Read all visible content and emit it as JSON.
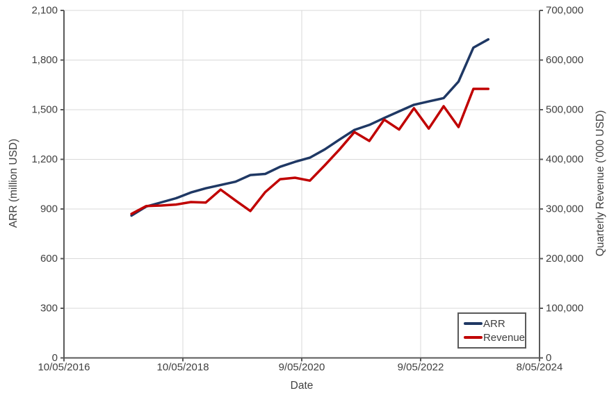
{
  "chart_data": {
    "type": "line",
    "title": "",
    "xlabel": "Date",
    "ylabel_left": "ARR (million USD)",
    "ylabel_right": "Quarterly Revenue ('000 USD)",
    "grid": true,
    "background": "#ffffff",
    "axis_line_color": "#595959",
    "gridline_color": "#d9d9d9",
    "text_color": "#404040",
    "legend": {
      "position": "bottom-right",
      "border_color": "#595959"
    },
    "x_axis": {
      "range_t": [
        2016.355,
        2024.352
      ],
      "ticks": [
        {
          "t": 2016.355,
          "label": "10/05/2016"
        },
        {
          "t": 2018.355,
          "label": "10/05/2018"
        },
        {
          "t": 2020.353,
          "label": "9/05/2020"
        },
        {
          "t": 2022.353,
          "label": "9/05/2022"
        },
        {
          "t": 2024.352,
          "label": "8/05/2024"
        }
      ]
    },
    "y_left_axis": {
      "range": [
        0,
        2100
      ],
      "tick_values": [
        0,
        300,
        600,
        900,
        1200,
        1500,
        1800,
        2100
      ],
      "tick_labels": [
        "0",
        "300",
        "600",
        "900",
        "1,200",
        "1,500",
        "1,800",
        "2,100"
      ]
    },
    "y_right_axis": {
      "range": [
        0,
        700000
      ],
      "tick_values": [
        0,
        100000,
        200000,
        300000,
        400000,
        500000,
        600000,
        700000
      ],
      "tick_labels": [
        "0",
        "100,000",
        "200,000",
        "300,000",
        "400,000",
        "500,000",
        "600,000",
        "700,000"
      ]
    },
    "quarters": [
      "2017-Q2",
      "2017-Q3",
      "2017-Q4",
      "2018-Q1",
      "2018-Q2",
      "2018-Q3",
      "2018-Q4",
      "2019-Q1",
      "2019-Q2",
      "2019-Q3",
      "2019-Q4",
      "2020-Q1",
      "2020-Q2",
      "2020-Q3",
      "2020-Q4",
      "2021-Q1",
      "2021-Q2",
      "2021-Q3",
      "2021-Q4",
      "2022-Q1",
      "2022-Q2",
      "2022-Q3",
      "2022-Q4",
      "2023-Q1",
      "2023-Q2"
    ],
    "x_t": [
      2017.49,
      2017.74,
      2017.99,
      2018.24,
      2018.49,
      2018.74,
      2018.99,
      2019.24,
      2019.49,
      2019.74,
      2019.99,
      2020.24,
      2020.49,
      2020.74,
      2020.99,
      2021.24,
      2021.49,
      2021.74,
      2021.99,
      2022.24,
      2022.49,
      2022.74,
      2022.99,
      2023.24,
      2023.49
    ],
    "series": [
      {
        "name": "ARR",
        "axis": "left",
        "color": "#1f3864",
        "values": [
          860,
          915,
          940,
          965,
          1000,
          1025,
          1045,
          1065,
          1105,
          1112,
          1155,
          1185,
          1210,
          1260,
          1320,
          1378,
          1408,
          1450,
          1490,
          1530,
          1550,
          1570,
          1670,
          1875,
          1925
        ]
      },
      {
        "name": "Revenue",
        "axis": "right",
        "color": "#c00000",
        "values": [
          290000,
          306000,
          307000,
          309000,
          314000,
          313000,
          339000,
          317000,
          296000,
          334000,
          360000,
          363000,
          357000,
          388000,
          420000,
          455000,
          437000,
          480000,
          460000,
          503000,
          462000,
          507000,
          465000,
          542000,
          542000
        ]
      }
    ]
  }
}
